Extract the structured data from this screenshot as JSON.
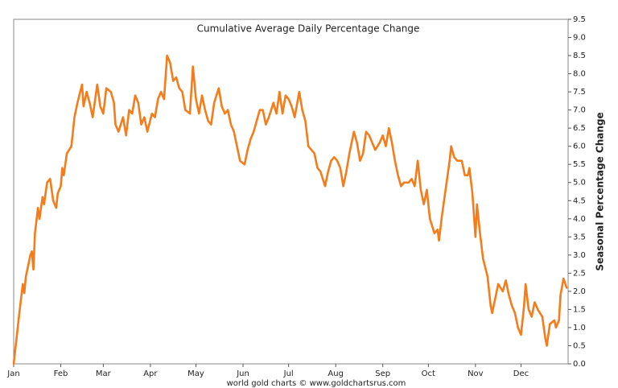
{
  "chart_data": {
    "type": "line",
    "title": "Cumulative Average Daily Percentage Change",
    "ylabel": "Seasonal Percentage Change",
    "source": "world gold charts © www.goldchartsrus.com",
    "color": "#f57c1a",
    "xlim": [
      1,
      366
    ],
    "xticks": [
      {
        "value": 1,
        "label": "Jan"
      },
      {
        "value": 32,
        "label": "Feb"
      },
      {
        "value": 60,
        "label": "Mar"
      },
      {
        "value": 91,
        "label": "Apr"
      },
      {
        "value": 121,
        "label": "May"
      },
      {
        "value": 152,
        "label": "Jun"
      },
      {
        "value": 182,
        "label": "Jul"
      },
      {
        "value": 213,
        "label": "Aug"
      },
      {
        "value": 244,
        "label": "Sep"
      },
      {
        "value": 274,
        "label": "Oct"
      },
      {
        "value": 305,
        "label": "Nov"
      },
      {
        "value": 335,
        "label": "Dec"
      }
    ],
    "ylim": [
      0,
      9.5
    ],
    "yticks": [
      {
        "value": 0,
        "label": "0.0"
      },
      0.5,
      {
        "value": 1,
        "label": "1.0"
      },
      1.5,
      {
        "value": 2,
        "label": "2.0"
      },
      2.5,
      {
        "value": 3,
        "label": "3.0"
      },
      3.5,
      {
        "value": 4,
        "label": "4.0"
      },
      4.5,
      {
        "value": 5,
        "label": "5.0"
      },
      5.5,
      {
        "value": 6,
        "label": "6.0"
      },
      6.5,
      {
        "value": 7,
        "label": "7.0"
      },
      7.5,
      {
        "value": 8,
        "label": "8.0"
      },
      8.5,
      {
        "value": 9,
        "label": "9.0"
      },
      9.5
    ],
    "x": [
      1,
      5,
      7,
      8,
      9,
      12,
      13,
      14,
      15,
      17,
      18,
      20,
      21,
      23,
      25,
      27,
      29,
      30,
      32,
      33,
      34,
      36,
      39,
      41,
      43,
      46,
      47,
      49,
      51,
      53,
      56,
      58,
      60,
      62,
      65,
      67,
      68,
      70,
      73,
      75,
      77,
      79,
      81,
      83,
      85,
      87,
      89,
      92,
      94,
      96,
      98,
      100,
      102,
      104,
      106,
      108,
      110,
      112,
      114,
      117,
      119,
      121,
      123,
      125,
      127,
      129,
      131,
      133,
      136,
      138,
      140,
      142,
      144,
      146,
      148,
      150,
      153,
      155,
      157,
      159,
      161,
      163,
      165,
      167,
      169,
      172,
      174,
      176,
      178,
      180,
      182,
      184,
      186,
      189,
      191,
      193,
      195,
      197,
      199,
      201,
      203,
      206,
      208,
      210,
      212,
      214,
      216,
      218,
      220,
      222,
      225,
      227,
      229,
      231,
      233,
      235,
      237,
      239,
      242,
      244,
      246,
      248,
      250,
      252,
      254,
      256,
      258,
      261,
      263,
      265,
      267,
      269,
      271,
      273,
      275,
      278,
      280,
      281,
      283,
      286,
      288,
      289,
      291,
      293,
      296,
      298,
      300,
      301,
      303,
      305,
      306,
      308,
      310,
      313,
      315,
      316,
      318,
      320,
      323,
      325,
      327,
      329,
      331,
      333,
      335,
      337,
      338,
      340,
      342,
      344,
      346,
      349,
      351,
      352,
      354,
      357,
      358,
      360,
      361,
      363,
      365
    ],
    "values": [
      0.0,
      1.5,
      2.2,
      1.95,
      2.4,
      3.0,
      3.1,
      2.6,
      3.6,
      4.3,
      4.0,
      4.6,
      4.4,
      5.0,
      5.1,
      4.5,
      4.3,
      4.7,
      4.9,
      5.4,
      5.2,
      5.8,
      6.0,
      6.8,
      7.2,
      7.7,
      7.1,
      7.5,
      7.2,
      6.8,
      7.7,
      7.1,
      6.9,
      7.6,
      7.5,
      7.2,
      6.6,
      6.4,
      6.8,
      6.3,
      7.0,
      6.9,
      7.4,
      7.2,
      6.6,
      6.8,
      6.4,
      6.9,
      6.8,
      7.3,
      7.5,
      7.3,
      8.5,
      8.3,
      7.8,
      7.9,
      7.6,
      7.5,
      7.0,
      6.9,
      8.2,
      7.3,
      6.9,
      7.4,
      7.0,
      6.7,
      6.6,
      7.2,
      7.6,
      7.1,
      6.9,
      7.0,
      6.6,
      6.4,
      6.0,
      5.6,
      5.5,
      5.9,
      6.2,
      6.4,
      6.7,
      7.0,
      7.0,
      6.6,
      6.8,
      7.2,
      6.9,
      7.5,
      6.9,
      7.4,
      7.3,
      7.1,
      6.8,
      7.5,
      7.0,
      6.7,
      6.0,
      5.9,
      5.8,
      5.4,
      5.3,
      4.9,
      5.3,
      5.6,
      5.7,
      5.6,
      5.4,
      4.9,
      5.3,
      5.8,
      6.4,
      6.1,
      5.6,
      5.8,
      6.4,
      6.3,
      6.1,
      5.9,
      6.1,
      6.3,
      6.0,
      6.5,
      6.1,
      5.6,
      5.2,
      4.9,
      5.0,
      5.0,
      5.1,
      4.9,
      5.6,
      4.8,
      4.4,
      4.8,
      4.0,
      3.6,
      3.7,
      3.4,
      4.1,
      5.0,
      5.6,
      6.0,
      5.7,
      5.6,
      5.6,
      5.2,
      5.2,
      5.4,
      4.7,
      3.5,
      4.4,
      3.6,
      2.9,
      2.4,
      1.6,
      1.4,
      1.8,
      2.2,
      2.0,
      2.3,
      1.9,
      1.6,
      1.4,
      1.0,
      0.8,
      1.6,
      2.2,
      1.5,
      1.3,
      1.7,
      1.5,
      1.3,
      0.7,
      0.5,
      1.1,
      1.2,
      1.0,
      1.2,
      1.9,
      2.35,
      2.1
    ]
  }
}
